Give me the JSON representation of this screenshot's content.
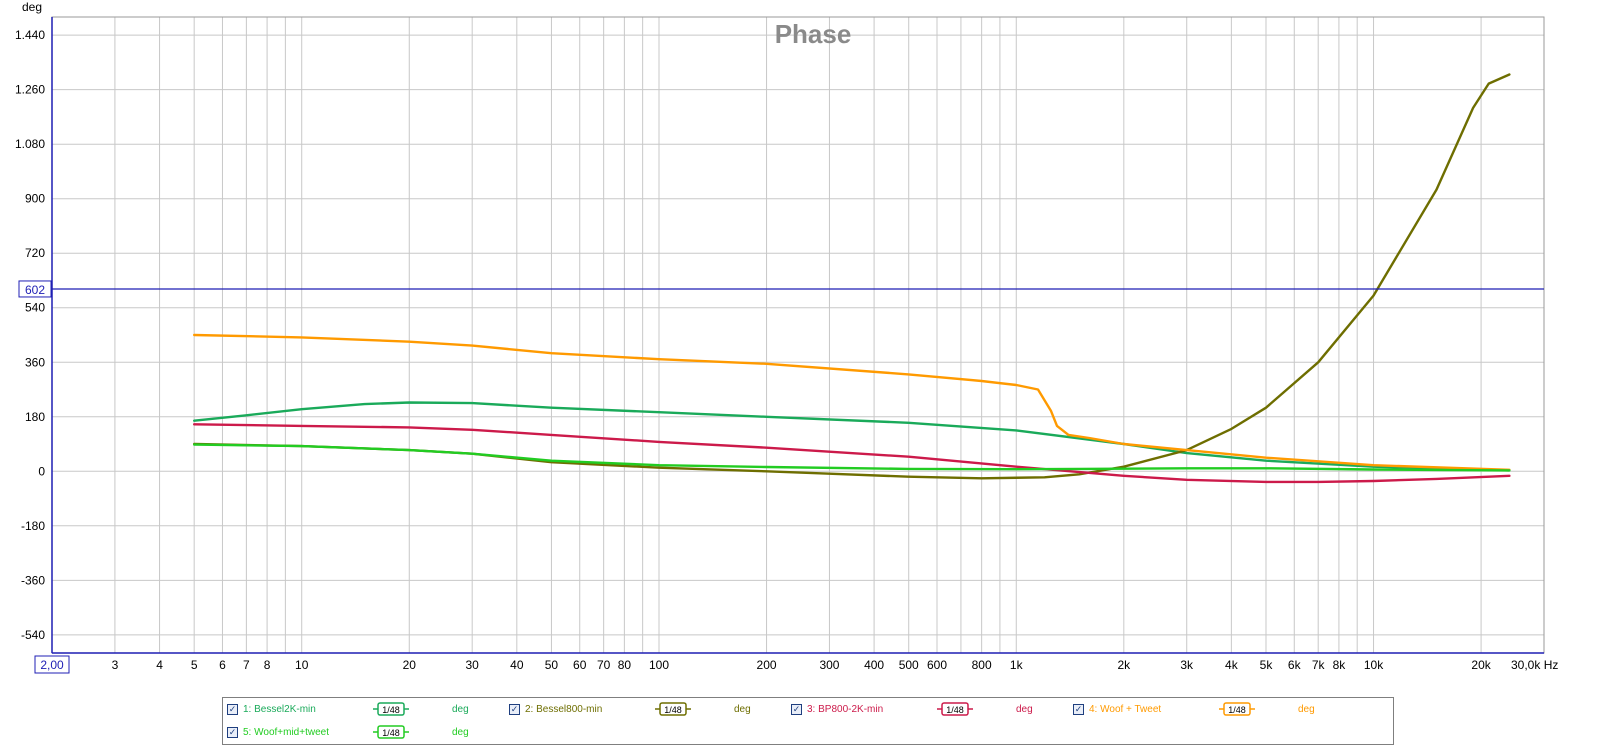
{
  "chart_data": {
    "type": "line",
    "title": "Phase",
    "ylabel": "deg",
    "x_unit_label": "Hz",
    "x_scale": "log",
    "xlim": [
      2,
      30000
    ],
    "ylim": [
      -600,
      1500
    ],
    "grid": true,
    "y_ticks": [
      {
        "v": -540,
        "label": "-540"
      },
      {
        "v": -360,
        "label": "-360"
      },
      {
        "v": -180,
        "label": "-180"
      },
      {
        "v": 0,
        "label": "0"
      },
      {
        "v": 180,
        "label": "180"
      },
      {
        "v": 360,
        "label": "360"
      },
      {
        "v": 540,
        "label": "540"
      },
      {
        "v": 720,
        "label": "720"
      },
      {
        "v": 900,
        "label": "900"
      },
      {
        "v": 1080,
        "label": "1.080"
      },
      {
        "v": 1260,
        "label": "1.260"
      },
      {
        "v": 1440,
        "label": "1.440"
      }
    ],
    "x_ticks": [
      {
        "v": 3,
        "label": "3"
      },
      {
        "v": 4,
        "label": "4"
      },
      {
        "v": 5,
        "label": "5"
      },
      {
        "v": 6,
        "label": "6"
      },
      {
        "v": 7,
        "label": "7"
      },
      {
        "v": 8,
        "label": "8"
      },
      {
        "v": 10,
        "label": "10"
      },
      {
        "v": 20,
        "label": "20"
      },
      {
        "v": 30,
        "label": "30"
      },
      {
        "v": 40,
        "label": "40"
      },
      {
        "v": 50,
        "label": "50"
      },
      {
        "v": 60,
        "label": "60"
      },
      {
        "v": 70,
        "label": "70"
      },
      {
        "v": 80,
        "label": "80"
      },
      {
        "v": 100,
        "label": "100"
      },
      {
        "v": 200,
        "label": "200"
      },
      {
        "v": 300,
        "label": "300"
      },
      {
        "v": 400,
        "label": "400"
      },
      {
        "v": 500,
        "label": "500"
      },
      {
        "v": 600,
        "label": "600"
      },
      {
        "v": 800,
        "label": "800"
      },
      {
        "v": 1000,
        "label": "1k"
      },
      {
        "v": 2000,
        "label": "2k"
      },
      {
        "v": 3000,
        "label": "3k"
      },
      {
        "v": 4000,
        "label": "4k"
      },
      {
        "v": 5000,
        "label": "5k"
      },
      {
        "v": 6000,
        "label": "6k"
      },
      {
        "v": 7000,
        "label": "7k"
      },
      {
        "v": 8000,
        "label": "8k"
      },
      {
        "v": 10000,
        "label": "10k"
      },
      {
        "v": 20000,
        "label": "20k"
      }
    ],
    "x_start_label": "2,00",
    "x_end_label": "30,0k",
    "cursor": {
      "value": 602,
      "label": "602",
      "color": "#1f1fb4"
    },
    "series": [
      {
        "name": "Bessel2K-min",
        "color": "#1aaa5a",
        "x": [
          5,
          7,
          10,
          15,
          20,
          30,
          50,
          100,
          200,
          500,
          1000,
          2000,
          3000,
          5000,
          10000,
          24000
        ],
        "y": [
          167,
          185,
          205,
          222,
          227,
          225,
          210,
          195,
          180,
          160,
          135,
          90,
          60,
          35,
          15,
          3
        ]
      },
      {
        "name": "Bessel800-min",
        "color": "#6e6e00",
        "x": [
          5,
          10,
          20,
          30,
          50,
          100,
          200,
          300,
          500,
          800,
          1200,
          1500,
          2000,
          3000,
          4000,
          5000,
          7000,
          10000,
          15000,
          19000,
          21000,
          24000
        ],
        "y": [
          90,
          83,
          70,
          58,
          30,
          12,
          0,
          -8,
          -18,
          -23,
          -20,
          -10,
          15,
          70,
          140,
          210,
          360,
          580,
          930,
          1200,
          1280,
          1310
        ]
      },
      {
        "name": "BP800-2K-min",
        "color": "#cc1a4a",
        "x": [
          5,
          10,
          20,
          30,
          50,
          100,
          200,
          500,
          1000,
          2000,
          3000,
          5000,
          7000,
          10000,
          15000,
          24000
        ],
        "y": [
          155,
          150,
          145,
          137,
          120,
          97,
          78,
          48,
          15,
          -15,
          -28,
          -35,
          -35,
          -32,
          -25,
          -15
        ]
      },
      {
        "name": "Woof + Tweet",
        "color": "#ff9a00",
        "x": [
          5,
          10,
          20,
          30,
          50,
          100,
          200,
          500,
          800,
          1000,
          1150,
          1250,
          1300,
          1400,
          1600,
          2000,
          3000,
          5000,
          10000,
          24000
        ],
        "y": [
          450,
          442,
          428,
          415,
          390,
          370,
          355,
          320,
          298,
          285,
          270,
          200,
          150,
          120,
          110,
          90,
          70,
          45,
          20,
          5
        ]
      },
      {
        "name": "Woof+mid+tweet",
        "color": "#22cc22",
        "x": [
          5,
          10,
          20,
          30,
          50,
          100,
          200,
          500,
          1000,
          1500,
          3000,
          5000,
          10000,
          24000
        ],
        "y": [
          88,
          83,
          70,
          58,
          35,
          20,
          14,
          8,
          7,
          8,
          10,
          10,
          6,
          3
        ]
      }
    ]
  },
  "legend": {
    "items": [
      {
        "label": "1: Bessel2K-min",
        "unit": "deg",
        "color": "#1aaa5a",
        "smoothing": "1/48",
        "checked": true
      },
      {
        "label": "2: Bessel800-min",
        "unit": "deg",
        "color": "#6e6e00",
        "smoothing": "1/48",
        "checked": true
      },
      {
        "label": "3: BP800-2K-min",
        "unit": "deg",
        "color": "#cc1a4a",
        "smoothing": "1/48",
        "checked": true
      },
      {
        "label": "4: Woof + Tweet",
        "unit": "deg",
        "color": "#ff9a00",
        "smoothing": "1/48",
        "checked": true
      },
      {
        "label": "5: Woof+mid+tweet",
        "unit": "deg",
        "color": "#22cc22",
        "smoothing": "1/48",
        "checked": true
      }
    ],
    "check_glyph": "✓"
  },
  "icons": {
    "checkbox": "checkbox-icon",
    "smoothing": "smoothing-icon"
  }
}
